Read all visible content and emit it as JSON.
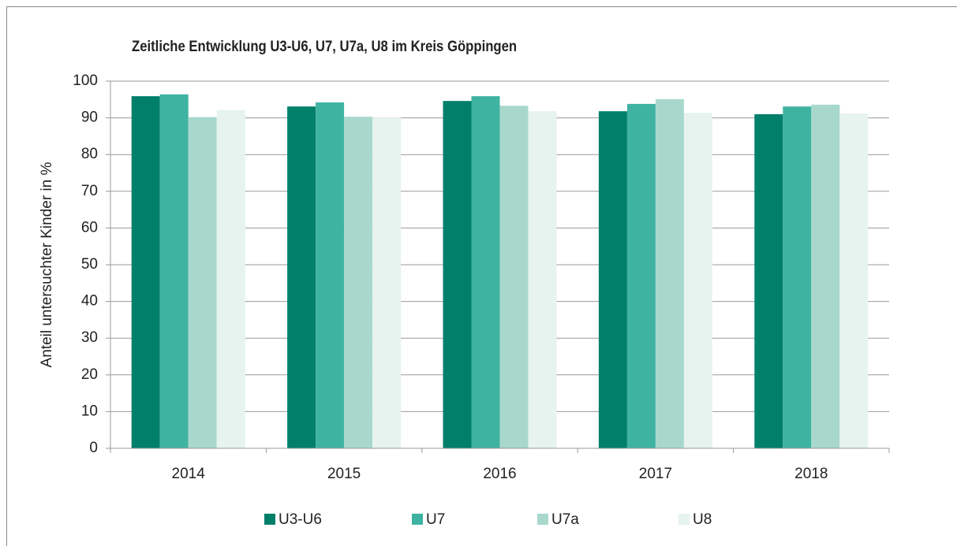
{
  "chart_data": {
    "type": "bar",
    "title": "Zeitliche Entwicklung U3-U6, U7, U7a, U8 im Kreis Göppingen",
    "y_label": "Anteil untersuchter Kinder in %",
    "categories": [
      "2014",
      "2015",
      "2016",
      "2017",
      "2018"
    ],
    "series": [
      {
        "name": "U3-U6",
        "color": "#007f6b",
        "values": [
          95.9,
          93.1,
          94.6,
          91.8,
          91.0
        ]
      },
      {
        "name": "U7",
        "color": "#3fb3a2",
        "values": [
          96.4,
          94.2,
          95.9,
          93.8,
          93.1
        ]
      },
      {
        "name": "U7a",
        "color": "#a8d8cc",
        "values": [
          90.2,
          90.3,
          93.3,
          95.1,
          93.6
        ]
      },
      {
        "name": "U8",
        "color": "#e6f3ef",
        "values": [
          92.1,
          90.1,
          91.8,
          91.4,
          91.2
        ]
      }
    ],
    "ylim": [
      0,
      100
    ],
    "yticks": [
      0,
      10,
      20,
      30,
      40,
      50,
      60,
      70,
      80,
      90,
      100
    ],
    "grid": true,
    "legend": "bottom"
  }
}
